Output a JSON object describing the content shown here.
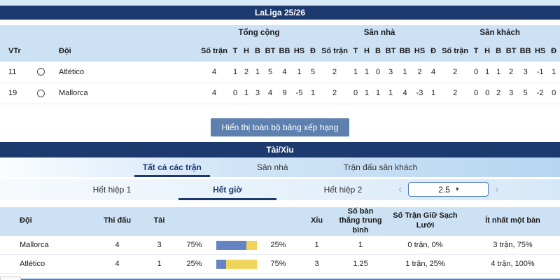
{
  "page": {
    "league_header": "LaLiga 25/26",
    "ou_header": "Tài/Xỉu",
    "show_all_button": "Hiển thị toàn bộ bảng xếp hạng"
  },
  "standings": {
    "group_headers": [
      "Tổng cộng",
      "Sân nhà",
      "Sân khách"
    ],
    "col_headers": {
      "pos": "VTr",
      "team": "Đội"
    },
    "stat_headers": [
      "Số trận",
      "T",
      "H",
      "B",
      "BT",
      "BB",
      "HS",
      "Đ"
    ],
    "rows": [
      {
        "pos": "11",
        "team": "Atlético",
        "total": [
          "4",
          "1",
          "2",
          "1",
          "5",
          "4",
          "1",
          "5"
        ],
        "home": [
          "2",
          "1",
          "1",
          "0",
          "3",
          "1",
          "2",
          "4"
        ],
        "away": [
          "2",
          "0",
          "1",
          "1",
          "2",
          "3",
          "-1",
          "1"
        ]
      },
      {
        "pos": "19",
        "team": "Mallorca",
        "total": [
          "4",
          "0",
          "1",
          "3",
          "4",
          "9",
          "-5",
          "1"
        ],
        "home": [
          "2",
          "0",
          "1",
          "1",
          "1",
          "4",
          "-3",
          "1"
        ],
        "away": [
          "2",
          "0",
          "0",
          "2",
          "3",
          "5",
          "-2",
          "0"
        ]
      }
    ]
  },
  "ou": {
    "tabs_row1": [
      "Tất cả các trận",
      "Sân nhà",
      "Trận đấu sân khách"
    ],
    "tabs_row2": [
      "Hết hiệp 1",
      "Hết giờ",
      "Hết hiệp 2"
    ],
    "line_selector": {
      "value": "2.5",
      "caret": "▾",
      "prev": "‹",
      "next": "›"
    },
    "table": {
      "headers": {
        "team": "Đội",
        "played": "Thi đấu",
        "over": "Tài",
        "under": "Xỉu",
        "avg_goals": "Số bàn thắng trung bình",
        "clean_sheets": "Số Trận Giữ Sạch Lưới",
        "at_least_one": "Ít nhất một bàn"
      },
      "rows": [
        {
          "team": "Mallorca",
          "played": "4",
          "over": "3",
          "over_pct": "75%",
          "under_pct": "25%",
          "under": "1",
          "avg_goals": "1",
          "clean_sheets": "0 trận, 0%",
          "at_least_one": "3 trận, 75%"
        },
        {
          "team": "Atlético",
          "played": "4",
          "over": "1",
          "over_pct": "25%",
          "under_pct": "75%",
          "under": "3",
          "avg_goals": "1.25",
          "clean_sheets": "1 trận, 25%",
          "at_least_one": "4 trận, 100%"
        }
      ]
    }
  },
  "colors": {
    "navy": "#1c3a6e",
    "header_blue": "#cde1f4",
    "bar_blue": "#6584c4",
    "bar_yellow": "#efd45c",
    "button_blue": "#5d80ae",
    "accent_blue": "#4a7cc0"
  }
}
